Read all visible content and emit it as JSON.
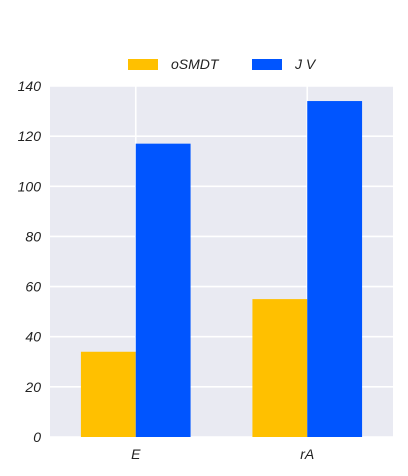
{
  "chart_data": {
    "type": "bar",
    "categories": [
      "E",
      "rA"
    ],
    "series": [
      {
        "name": "oSMDT",
        "color": "#FFC000",
        "values": [
          34,
          55
        ]
      },
      {
        "name": "J V",
        "color": "#0055FF",
        "values": [
          117,
          134
        ]
      }
    ],
    "ylim": [
      0,
      140
    ],
    "yticks": [
      0,
      20,
      40,
      60,
      80,
      100,
      120,
      140
    ],
    "grid": true,
    "background": "#E9EAF2",
    "legend_position": "top-center"
  }
}
